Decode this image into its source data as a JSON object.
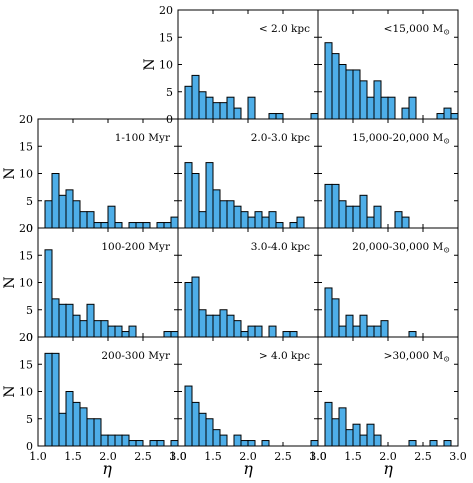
{
  "chart_data": {
    "type": "bar",
    "layout": "grid of 4 rows x 3 columns of histograms; top-left cell empty",
    "xlabel": "η",
    "ylabel": "N",
    "xlim": [
      1.0,
      3.0
    ],
    "ylim": [
      0,
      20
    ],
    "bin_width": 0.1,
    "bin_starts": [
      1.0,
      1.1,
      1.2,
      1.3,
      1.4,
      1.5,
      1.6,
      1.7,
      1.8,
      1.9,
      2.0,
      2.1,
      2.2,
      2.3,
      2.4,
      2.5,
      2.6,
      2.7,
      2.8,
      2.9
    ],
    "x_ticks": [
      "1.0",
      "1.5",
      "2.0",
      "2.5",
      "3.0"
    ],
    "x_tick_values": [
      1.0,
      1.5,
      2.0,
      2.5,
      3.0
    ],
    "y_ticks": [
      "0",
      "5",
      "10",
      "15",
      "20"
    ],
    "y_tick_values": [
      0,
      5,
      10,
      15,
      20
    ],
    "bar_color": "#4eaee8",
    "panels": [
      {
        "row": 0,
        "col": 1,
        "label": "< 2.0 kpc",
        "counts": [
          0,
          6,
          8,
          5,
          4,
          3,
          3,
          4,
          2,
          0,
          4,
          0,
          0,
          1,
          1,
          0,
          0,
          0,
          0,
          1
        ]
      },
      {
        "row": 0,
        "col": 2,
        "label": "<15,000 M",
        "sun": true,
        "counts": [
          0,
          14,
          12,
          10,
          9,
          9,
          7,
          4,
          7,
          4,
          4,
          0,
          2,
          4,
          0,
          0,
          0,
          1,
          2,
          1
        ]
      },
      {
        "row": 1,
        "col": 0,
        "label": "1-100 Myr",
        "counts": [
          0,
          5,
          10,
          6,
          7,
          5,
          3,
          3,
          1,
          1,
          4,
          1,
          0,
          1,
          1,
          1,
          0,
          1,
          1,
          2
        ]
      },
      {
        "row": 1,
        "col": 1,
        "label": "2.0-3.0 kpc",
        "counts": [
          0,
          12,
          10,
          3,
          12,
          7,
          5,
          5,
          4,
          3,
          2,
          3,
          2,
          3,
          1,
          0,
          1,
          2,
          0,
          0
        ]
      },
      {
        "row": 1,
        "col": 2,
        "label": "15,000-20,000 M",
        "sun": true,
        "counts": [
          0,
          8,
          8,
          5,
          4,
          4,
          6,
          2,
          4,
          0,
          0,
          3,
          2,
          0,
          0,
          0,
          0,
          0,
          0,
          0
        ]
      },
      {
        "row": 2,
        "col": 0,
        "label": "100-200 Myr",
        "counts": [
          0,
          16,
          7,
          6,
          6,
          4,
          3,
          6,
          3,
          3,
          2,
          2,
          1,
          2,
          0,
          0,
          0,
          0,
          1,
          1
        ]
      },
      {
        "row": 2,
        "col": 1,
        "label": "3.0-4.0 kpc",
        "counts": [
          0,
          10,
          11,
          5,
          4,
          4,
          5,
          4,
          3,
          1,
          2,
          2,
          0,
          2,
          0,
          1,
          1,
          0,
          0,
          0
        ]
      },
      {
        "row": 2,
        "col": 2,
        "label": "20,000-30,000 M",
        "sun": true,
        "counts": [
          0,
          9,
          7,
          2,
          4,
          2,
          4,
          2,
          2,
          3,
          0,
          0,
          0,
          1,
          0,
          0,
          0,
          0,
          0,
          0
        ]
      },
      {
        "row": 3,
        "col": 0,
        "label": "200-300 Myr",
        "counts": [
          0,
          17,
          17,
          6,
          10,
          8,
          7,
          5,
          5,
          2,
          2,
          2,
          2,
          1,
          1,
          0,
          1,
          1,
          0,
          1
        ]
      },
      {
        "row": 3,
        "col": 1,
        "label": "> 4.0 kpc",
        "counts": [
          0,
          11,
          8,
          6,
          5,
          3,
          2,
          0,
          2,
          1,
          1,
          0,
          1,
          0,
          0,
          0,
          0,
          0,
          0,
          1
        ]
      },
      {
        "row": 3,
        "col": 2,
        "label": ">30,000 M",
        "sun": true,
        "counts": [
          0,
          8,
          5,
          7,
          3,
          4,
          2,
          4,
          2,
          0,
          0,
          0,
          0,
          1,
          0,
          0,
          1,
          0,
          1,
          0
        ]
      }
    ]
  }
}
